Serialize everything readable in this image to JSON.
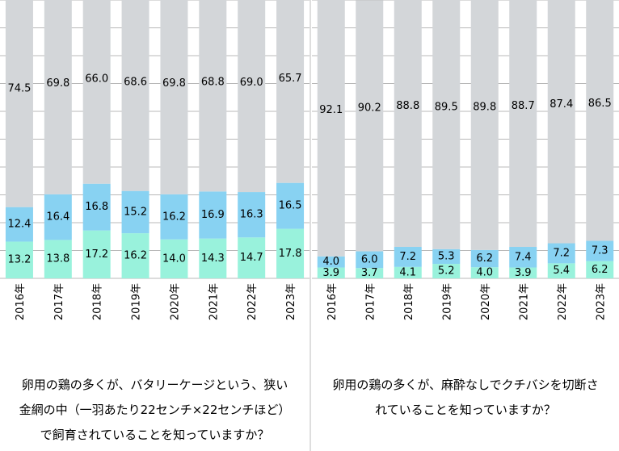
{
  "chart_data": [
    {
      "type": "bar",
      "stacked": true,
      "categories": [
        "2016年",
        "2017年",
        "2018年",
        "2019年",
        "2020年",
        "2021年",
        "2022年",
        "2023年"
      ],
      "series": [
        {
          "values": [
            13.2,
            13.8,
            17.2,
            16.2,
            14.0,
            14.3,
            14.7,
            17.8
          ],
          "color": "#99f2dc"
        },
        {
          "values": [
            12.4,
            16.4,
            16.8,
            15.2,
            16.2,
            16.9,
            16.3,
            16.5
          ],
          "color": "#88d2f2"
        },
        {
          "values": [
            74.5,
            69.8,
            66.0,
            68.6,
            69.8,
            68.8,
            69.0,
            65.7
          ],
          "color": "#d3d6d9"
        }
      ],
      "ylim": [
        0,
        100
      ],
      "grid": true,
      "caption_lines": [
        "卵用の鶏の多くが、バタリーケージという、狭い",
        "金網の中（一羽あたり22センチ×22センチほど）",
        "で飼育されていることを知っていますか？"
      ]
    },
    {
      "type": "bar",
      "stacked": true,
      "categories": [
        "2016年",
        "2017年",
        "2018年",
        "2019年",
        "2020年",
        "2021年",
        "2022年",
        "2023年"
      ],
      "series": [
        {
          "values": [
            3.9,
            3.7,
            4.1,
            5.2,
            4.0,
            3.9,
            5.4,
            6.2
          ],
          "color": "#99f2dc"
        },
        {
          "values": [
            4.0,
            6.0,
            7.2,
            5.3,
            6.2,
            7.4,
            7.2,
            7.3
          ],
          "color": "#88d2f2"
        },
        {
          "values": [
            92.1,
            90.2,
            88.8,
            89.5,
            89.8,
            88.7,
            87.4,
            86.5
          ],
          "color": "#d3d6d9"
        }
      ],
      "ylim": [
        0,
        100
      ],
      "grid": true,
      "caption_lines": [
        "卵用の鶏の多くが、麻酔なしでクチバシを切断さ",
        "れていることを知っていますか？"
      ]
    }
  ]
}
